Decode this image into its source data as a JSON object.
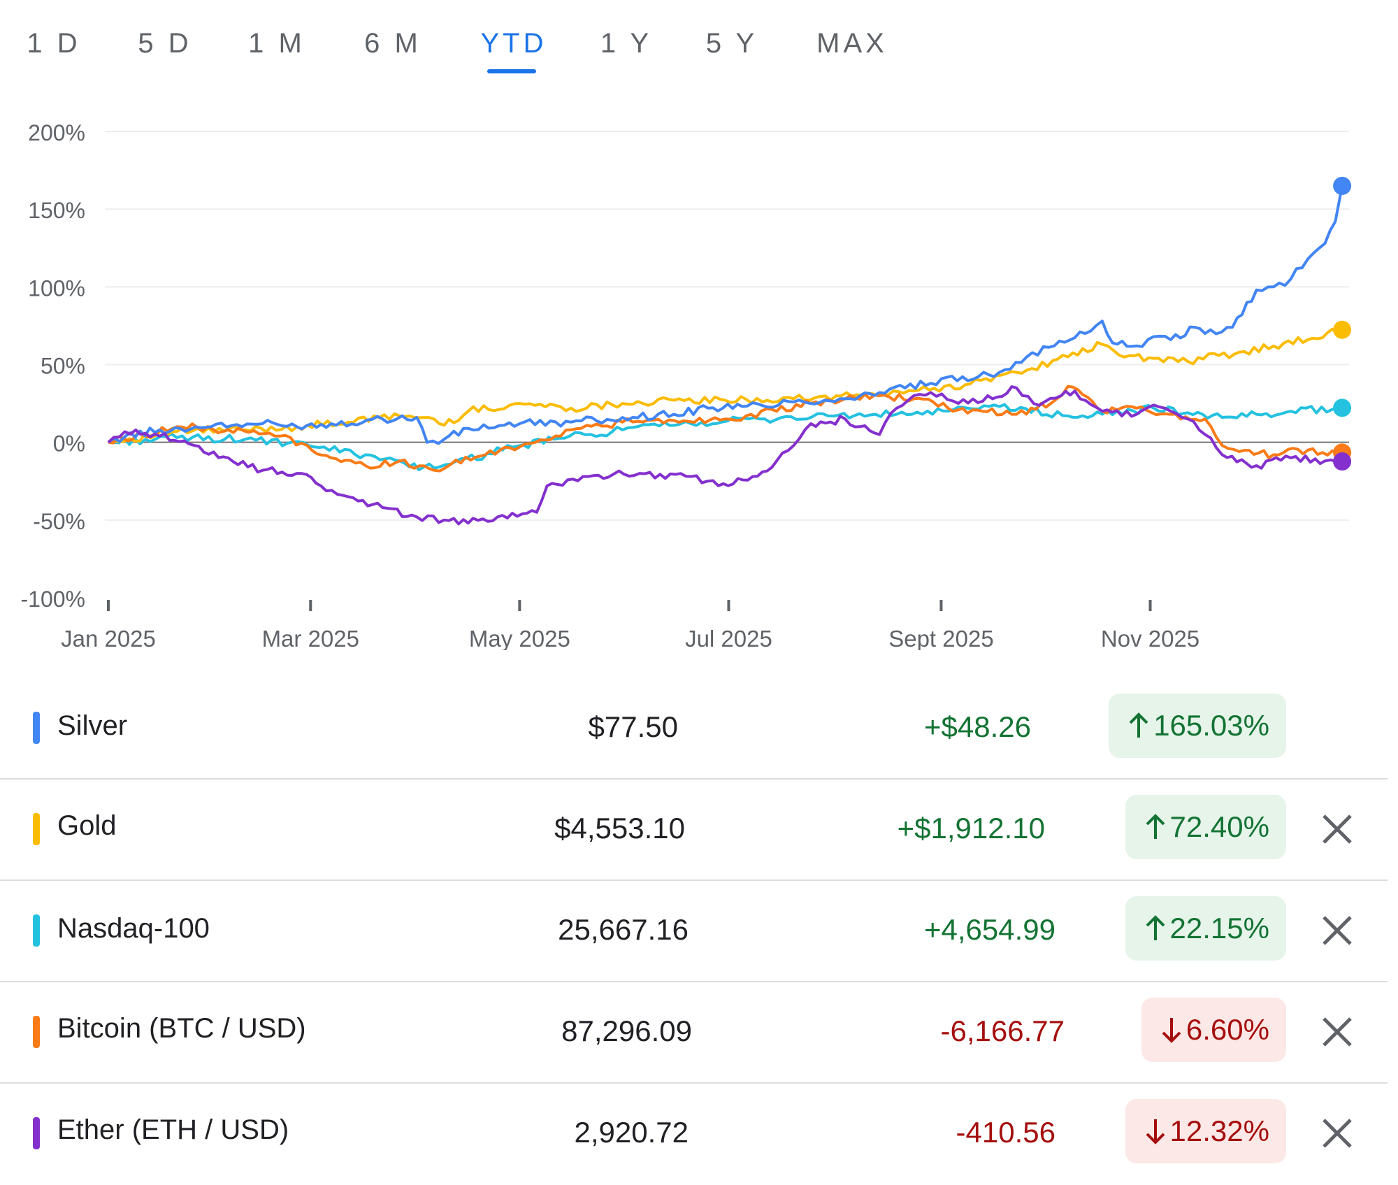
{
  "tabs": [
    {
      "label": "1 D"
    },
    {
      "label": "5 D"
    },
    {
      "label": "1 M"
    },
    {
      "label": "6 M"
    },
    {
      "label": "YTD"
    },
    {
      "label": "1 Y"
    },
    {
      "label": "5 Y"
    },
    {
      "label": "MAX"
    }
  ],
  "active_tab": "YTD",
  "colors": {
    "silver": "#4285f4",
    "gold": "#fbbc04",
    "nasdaq": "#24c1e0",
    "bitcoin": "#fa7b17",
    "ether": "#8430ce",
    "grid": "#eeeeee",
    "zero_line": "#757575",
    "axis_text": "#5f6368",
    "up": "#137333",
    "down": "#a50e0e"
  },
  "chart_data": {
    "type": "line",
    "title": "",
    "xlabel": "",
    "ylabel": "",
    "ylim": [
      -100,
      200
    ],
    "yticks": [
      200,
      150,
      100,
      50,
      0,
      -50,
      -100
    ],
    "ytick_labels": [
      "200%",
      "150%",
      "100%",
      "50%",
      "0%",
      "-50%",
      "-100%"
    ],
    "xlim": [
      0,
      361
    ],
    "xticks": [
      0,
      59,
      120,
      181,
      243,
      304
    ],
    "xtick_labels": [
      "Jan 2025",
      "Mar 2025",
      "May 2025",
      "Jul 2025",
      "Sept 2025",
      "Nov 2025"
    ],
    "grid": true,
    "series": [
      {
        "name": "Silver",
        "color": "#4285f4",
        "points": [
          [
            0,
            0
          ],
          [
            5,
            4
          ],
          [
            15,
            8
          ],
          [
            30,
            10
          ],
          [
            45,
            12
          ],
          [
            55,
            10
          ],
          [
            65,
            12
          ],
          [
            80,
            15
          ],
          [
            90,
            16
          ],
          [
            93,
            0
          ],
          [
            98,
            2
          ],
          [
            105,
            9
          ],
          [
            120,
            12
          ],
          [
            135,
            13
          ],
          [
            150,
            16
          ],
          [
            165,
            18
          ],
          [
            175,
            22
          ],
          [
            185,
            23
          ],
          [
            200,
            26
          ],
          [
            215,
            28
          ],
          [
            225,
            32
          ],
          [
            240,
            38
          ],
          [
            260,
            45
          ],
          [
            268,
            55
          ],
          [
            276,
            62
          ],
          [
            285,
            70
          ],
          [
            290,
            78
          ],
          [
            293,
            64
          ],
          [
            300,
            62
          ],
          [
            305,
            68
          ],
          [
            310,
            66
          ],
          [
            317,
            74
          ],
          [
            320,
            70
          ],
          [
            328,
            74
          ],
          [
            335,
            98
          ],
          [
            340,
            100
          ],
          [
            345,
            105
          ],
          [
            350,
            118
          ],
          [
            355,
            128
          ],
          [
            358,
            142
          ],
          [
            360,
            165
          ]
        ]
      },
      {
        "name": "Gold",
        "color": "#fbbc04",
        "points": [
          [
            0,
            0
          ],
          [
            20,
            7
          ],
          [
            40,
            8
          ],
          [
            55,
            10
          ],
          [
            70,
            13
          ],
          [
            85,
            17
          ],
          [
            95,
            15
          ],
          [
            98,
            11
          ],
          [
            105,
            20
          ],
          [
            120,
            25
          ],
          [
            135,
            22
          ],
          [
            150,
            25
          ],
          [
            165,
            27
          ],
          [
            180,
            27
          ],
          [
            200,
            28
          ],
          [
            220,
            30
          ],
          [
            235,
            33
          ],
          [
            250,
            37
          ],
          [
            265,
            45
          ],
          [
            280,
            55
          ],
          [
            290,
            63
          ],
          [
            295,
            56
          ],
          [
            305,
            54
          ],
          [
            315,
            52
          ],
          [
            330,
            58
          ],
          [
            340,
            62
          ],
          [
            350,
            66
          ],
          [
            360,
            72.4
          ]
        ]
      },
      {
        "name": "Nasdaq-100",
        "color": "#24c1e0",
        "points": [
          [
            0,
            0
          ],
          [
            20,
            3
          ],
          [
            40,
            2
          ],
          [
            60,
            -3
          ],
          [
            75,
            -8
          ],
          [
            85,
            -12
          ],
          [
            92,
            -16
          ],
          [
            100,
            -14
          ],
          [
            115,
            -5
          ],
          [
            130,
            2
          ],
          [
            150,
            8
          ],
          [
            170,
            12
          ],
          [
            190,
            15
          ],
          [
            210,
            17
          ],
          [
            230,
            18
          ],
          [
            245,
            20
          ],
          [
            260,
            23
          ],
          [
            280,
            17
          ],
          [
            290,
            18
          ],
          [
            305,
            22
          ],
          [
            315,
            19
          ],
          [
            325,
            16
          ],
          [
            335,
            18
          ],
          [
            345,
            20
          ],
          [
            360,
            22.15
          ]
        ]
      },
      {
        "name": "Bitcoin (BTC / USD)",
        "color": "#fa7b17",
        "points": [
          [
            0,
            0
          ],
          [
            10,
            5
          ],
          [
            20,
            10
          ],
          [
            35,
            8
          ],
          [
            50,
            4
          ],
          [
            58,
            -2
          ],
          [
            65,
            -10
          ],
          [
            75,
            -15
          ],
          [
            85,
            -12
          ],
          [
            95,
            -18
          ],
          [
            100,
            -14
          ],
          [
            110,
            -8
          ],
          [
            120,
            -3
          ],
          [
            135,
            8
          ],
          [
            150,
            13
          ],
          [
            165,
            14
          ],
          [
            180,
            15
          ],
          [
            195,
            20
          ],
          [
            205,
            25
          ],
          [
            215,
            28
          ],
          [
            225,
            30
          ],
          [
            235,
            28
          ],
          [
            245,
            22
          ],
          [
            255,
            20
          ],
          [
            265,
            18
          ],
          [
            275,
            25
          ],
          [
            280,
            36
          ],
          [
            290,
            20
          ],
          [
            300,
            22
          ],
          [
            310,
            18
          ],
          [
            320,
            15
          ],
          [
            325,
            -2
          ],
          [
            330,
            -6
          ],
          [
            340,
            -8
          ],
          [
            350,
            -5
          ],
          [
            360,
            -6.6
          ]
        ]
      },
      {
        "name": "Ether (ETH / USD)",
        "color": "#8430ce",
        "points": [
          [
            0,
            0
          ],
          [
            8,
            8
          ],
          [
            15,
            4
          ],
          [
            25,
            -2
          ],
          [
            35,
            -10
          ],
          [
            45,
            -18
          ],
          [
            55,
            -20
          ],
          [
            62,
            -28
          ],
          [
            70,
            -35
          ],
          [
            80,
            -42
          ],
          [
            90,
            -48
          ],
          [
            98,
            -50
          ],
          [
            105,
            -52
          ],
          [
            115,
            -47
          ],
          [
            125,
            -45
          ],
          [
            128,
            -28
          ],
          [
            140,
            -22
          ],
          [
            155,
            -20
          ],
          [
            170,
            -22
          ],
          [
            178,
            -28
          ],
          [
            188,
            -22
          ],
          [
            195,
            -12
          ],
          [
            200,
            -2
          ],
          [
            205,
            12
          ],
          [
            215,
            15
          ],
          [
            225,
            5
          ],
          [
            230,
            22
          ],
          [
            235,
            30
          ],
          [
            240,
            32
          ],
          [
            248,
            25
          ],
          [
            258,
            28
          ],
          [
            265,
            35
          ],
          [
            270,
            25
          ],
          [
            278,
            30
          ],
          [
            282,
            33
          ],
          [
            290,
            20
          ],
          [
            300,
            18
          ],
          [
            305,
            24
          ],
          [
            310,
            20
          ],
          [
            315,
            15
          ],
          [
            320,
            5
          ],
          [
            325,
            -8
          ],
          [
            335,
            -15
          ],
          [
            345,
            -10
          ],
          [
            355,
            -12
          ],
          [
            360,
            -12.32
          ]
        ]
      }
    ]
  },
  "rows": [
    {
      "name": "Silver",
      "price": "$77.50",
      "change": "+$48.26",
      "percent": "165.03%",
      "direction": "up",
      "closable": false
    },
    {
      "name": "Gold",
      "price": "$4,553.10",
      "change": "+$1,912.10",
      "percent": "72.40%",
      "direction": "up",
      "closable": true
    },
    {
      "name": "Nasdaq-100",
      "price": "25,667.16",
      "change": "+4,654.99",
      "percent": "22.15%",
      "direction": "up",
      "closable": true
    },
    {
      "name": "Bitcoin (BTC / USD)",
      "price": "87,296.09",
      "change": "-6,166.77",
      "percent": "6.60%",
      "direction": "down",
      "closable": true
    },
    {
      "name": "Ether (ETH / USD)",
      "price": "2,920.72",
      "change": "-410.56",
      "percent": "12.32%",
      "direction": "down",
      "closable": true
    }
  ],
  "icons": {
    "up": "arrow-up-icon",
    "down": "arrow-down-icon",
    "close": "close-icon"
  }
}
